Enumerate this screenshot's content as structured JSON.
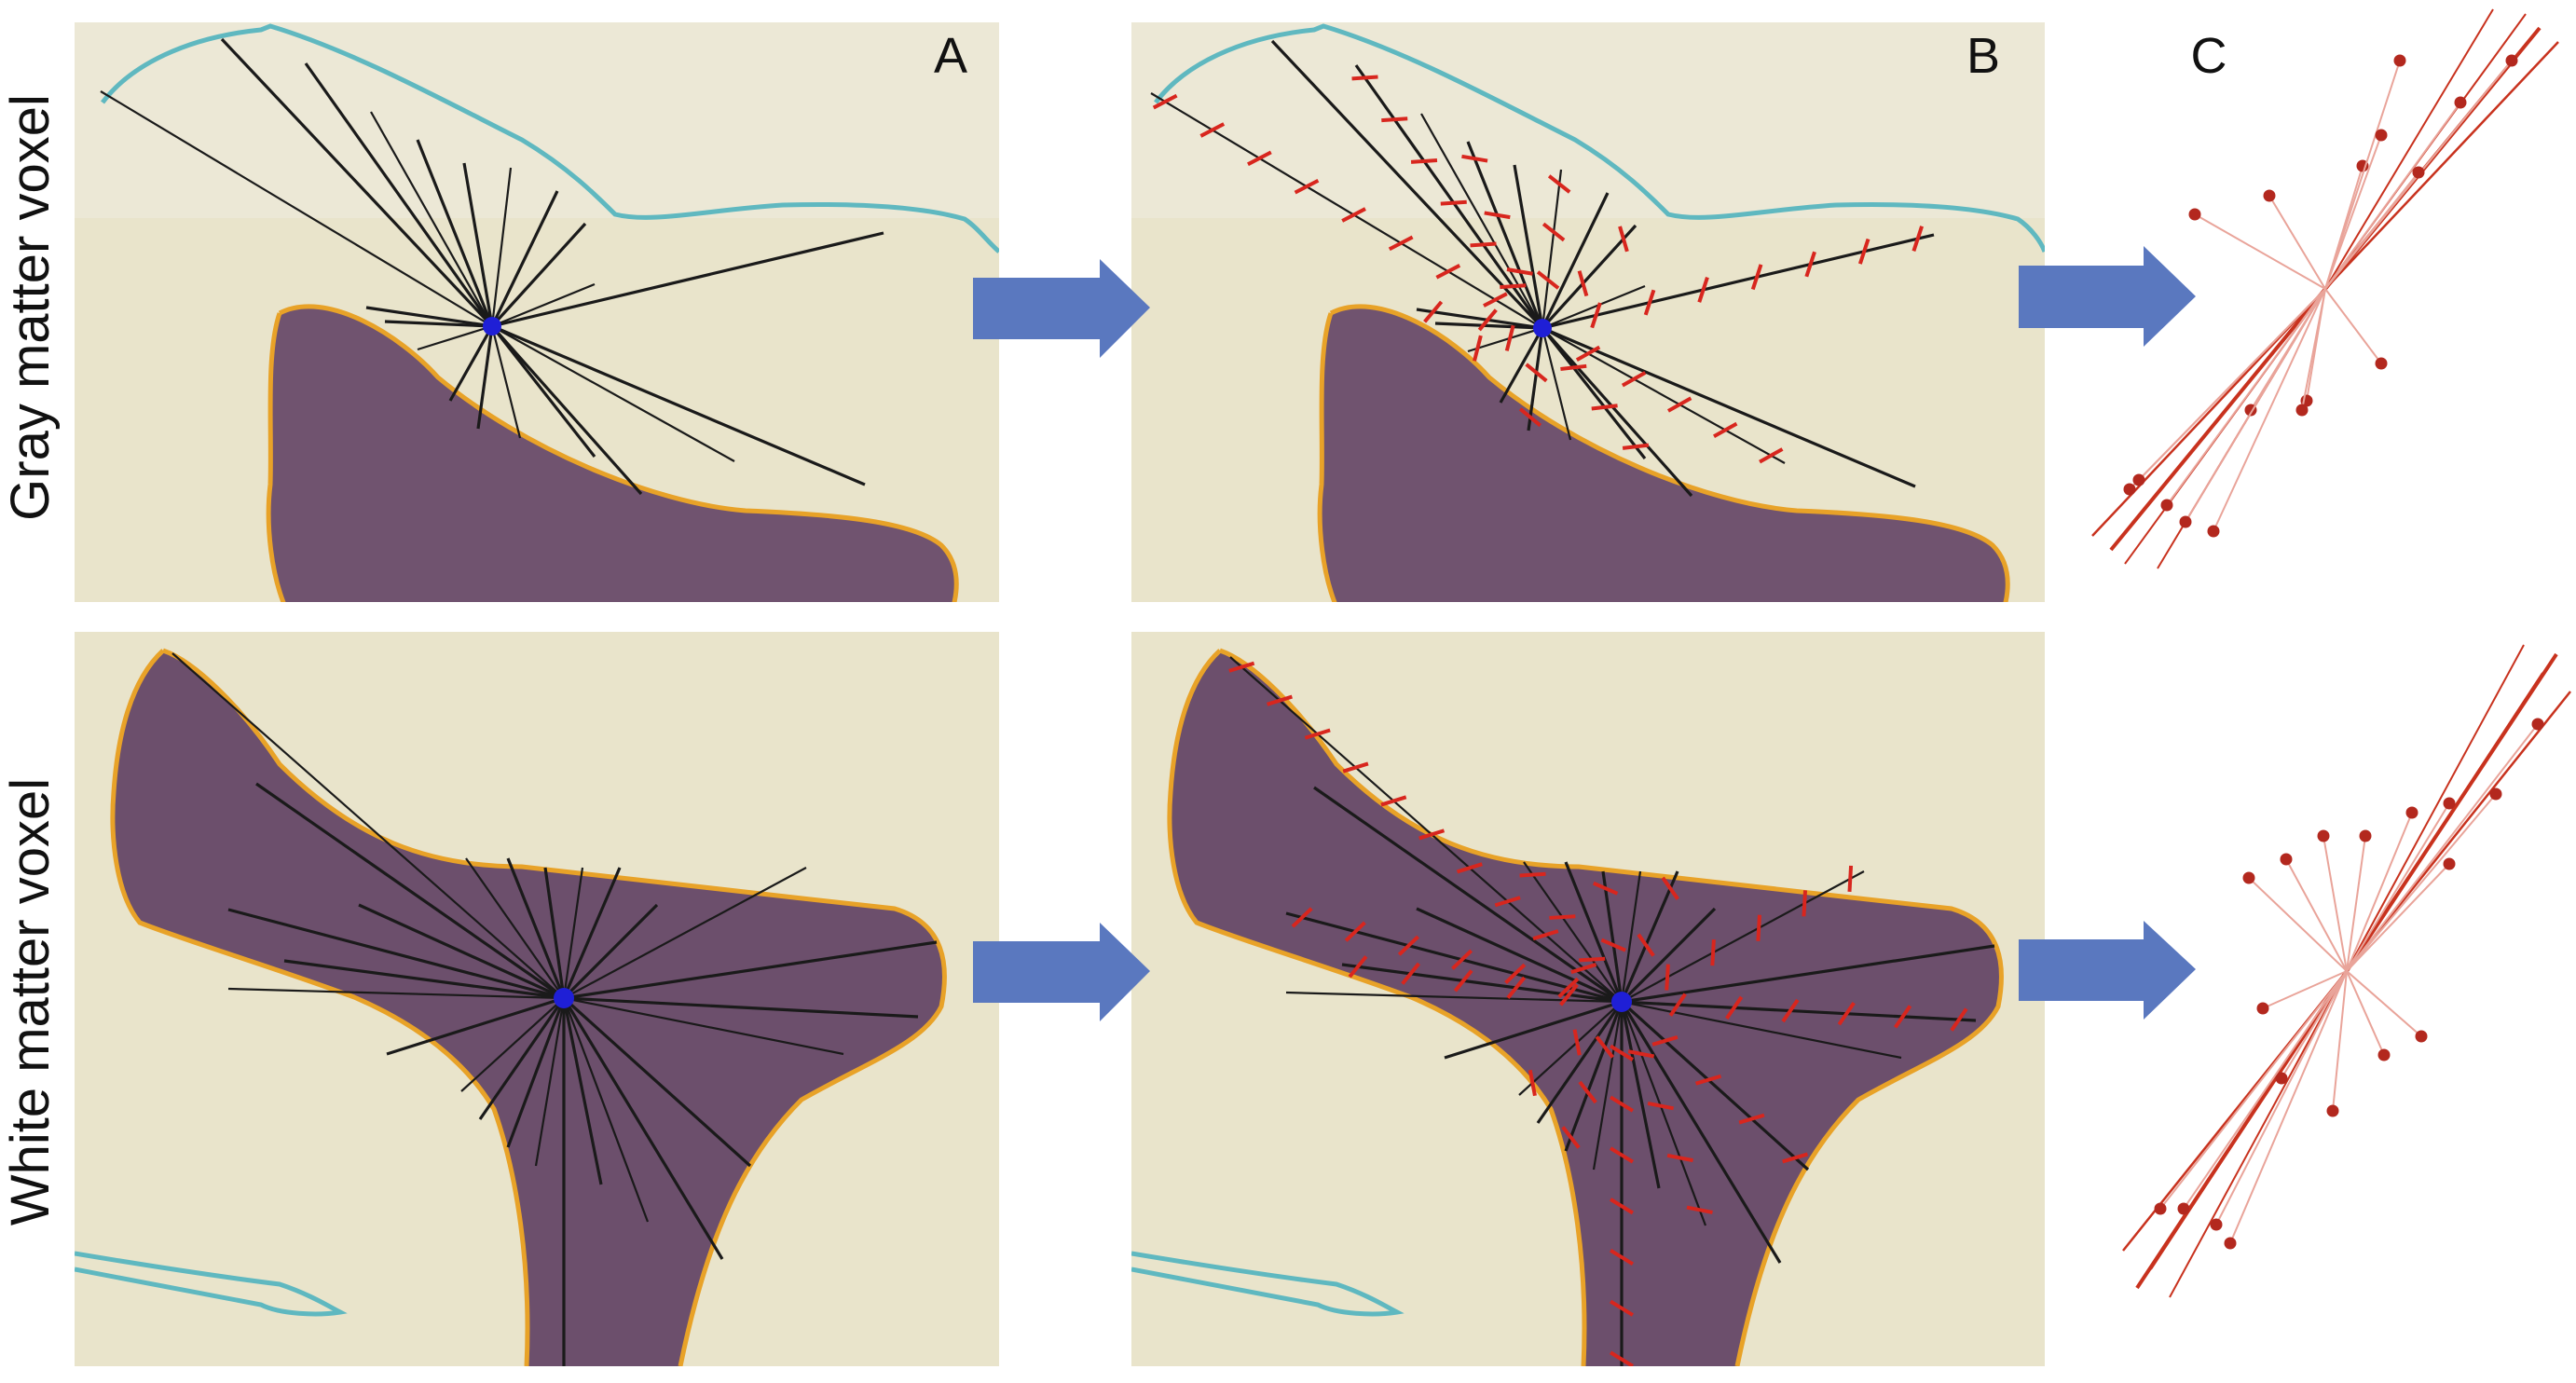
{
  "rows": [
    {
      "label": "Gray matter voxel"
    },
    {
      "label": "White matter voxel"
    }
  ],
  "panel_letters": [
    "A",
    "B",
    "C"
  ],
  "colors": {
    "background": "#e9e4cb",
    "gray_matter_outline": "#5fb8c0",
    "white_matter_fill": "#5a3a5f",
    "white_matter_outline": "#e8a228",
    "voxel_center": "#1f1fd6",
    "rays": "#1a1a1a",
    "crossings": "#d8261e",
    "arrow": "#5a78bf",
    "orientation": "#c8321e"
  },
  "icons": [
    "arrow-right-icon"
  ]
}
